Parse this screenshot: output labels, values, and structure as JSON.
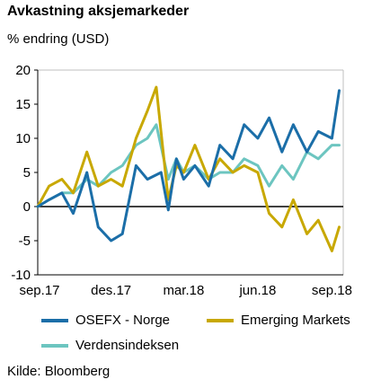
{
  "chart_data": {
    "type": "line",
    "title": "Avkastning aksjemarkeder",
    "ylabel": "% endring (USD)",
    "ylim": [
      -10,
      20
    ],
    "yticks": [
      -10,
      -5,
      0,
      5,
      10,
      15,
      20
    ],
    "xtick_labels": [
      "sep.17",
      "des.17",
      "mar.18",
      "jun.18",
      "sep.18"
    ],
    "xrange": [
      "2017-09",
      "2018-09"
    ],
    "series": [
      {
        "name": "OSEFX - Norge",
        "color": "#1b6ea8",
        "x": [
          "2017-09-01",
          "2017-09-15",
          "2017-10-01",
          "2017-10-15",
          "2017-11-01",
          "2017-11-15",
          "2017-12-01",
          "2017-12-15",
          "2018-01-01",
          "2018-01-15",
          "2018-02-01",
          "2018-02-10",
          "2018-02-20",
          "2018-03-01",
          "2018-03-15",
          "2018-04-01",
          "2018-04-15",
          "2018-05-01",
          "2018-05-15",
          "2018-06-01",
          "2018-06-15",
          "2018-07-01",
          "2018-07-15",
          "2018-08-01",
          "2018-08-15",
          "2018-09-01",
          "2018-09-10"
        ],
        "values": [
          0,
          1,
          2,
          -1,
          5,
          -3,
          -5,
          -4,
          6,
          4,
          5,
          -0.5,
          7,
          4,
          6,
          3,
          9,
          7,
          12,
          10,
          13,
          8,
          12,
          8,
          11,
          10,
          17
        ]
      },
      {
        "name": "Emerging Markets",
        "color": "#c8a800",
        "x": [
          "2017-09-01",
          "2017-09-15",
          "2017-10-01",
          "2017-10-15",
          "2017-11-01",
          "2017-11-15",
          "2017-12-01",
          "2017-12-15",
          "2018-01-01",
          "2018-01-15",
          "2018-01-26",
          "2018-02-10",
          "2018-02-20",
          "2018-03-01",
          "2018-03-15",
          "2018-04-01",
          "2018-04-15",
          "2018-05-01",
          "2018-05-15",
          "2018-06-01",
          "2018-06-15",
          "2018-07-01",
          "2018-07-15",
          "2018-08-01",
          "2018-08-15",
          "2018-09-01",
          "2018-09-10"
        ],
        "values": [
          0,
          3,
          4,
          2,
          8,
          3,
          4,
          3,
          10,
          14,
          17.5,
          1,
          6,
          5,
          9,
          4,
          7,
          5,
          6,
          5,
          -1,
          -3,
          1,
          -4,
          -2,
          -6.5,
          -3
        ]
      },
      {
        "name": "Verdensindeksen",
        "color": "#6cc5c0",
        "x": [
          "2017-09-01",
          "2017-09-15",
          "2017-10-01",
          "2017-10-15",
          "2017-11-01",
          "2017-11-15",
          "2017-12-01",
          "2017-12-15",
          "2018-01-01",
          "2018-01-15",
          "2018-01-26",
          "2018-02-10",
          "2018-02-20",
          "2018-03-01",
          "2018-03-15",
          "2018-04-01",
          "2018-04-15",
          "2018-05-01",
          "2018-05-15",
          "2018-06-01",
          "2018-06-15",
          "2018-07-01",
          "2018-07-15",
          "2018-08-01",
          "2018-08-15",
          "2018-09-01",
          "2018-09-10"
        ],
        "values": [
          0,
          1,
          2,
          2,
          4,
          3,
          5,
          6,
          9,
          10,
          12,
          4,
          7,
          5,
          6,
          4,
          5,
          5,
          7,
          6,
          3,
          6,
          4,
          8,
          7,
          9,
          9
        ]
      }
    ]
  },
  "source": "Kilde: Bloomberg"
}
